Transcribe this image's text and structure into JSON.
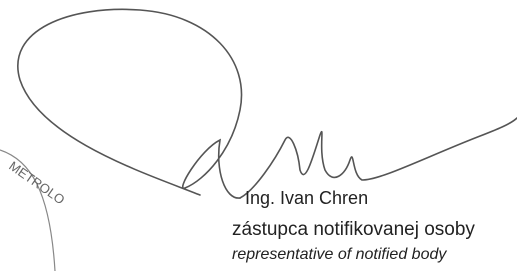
{
  "stamp": {
    "text": "METROLO"
  },
  "signatory": {
    "name": "Ing. Ivan Chren",
    "role_sk": "zástupca notifikovanej osoby",
    "role_en": "representative of notified body"
  }
}
